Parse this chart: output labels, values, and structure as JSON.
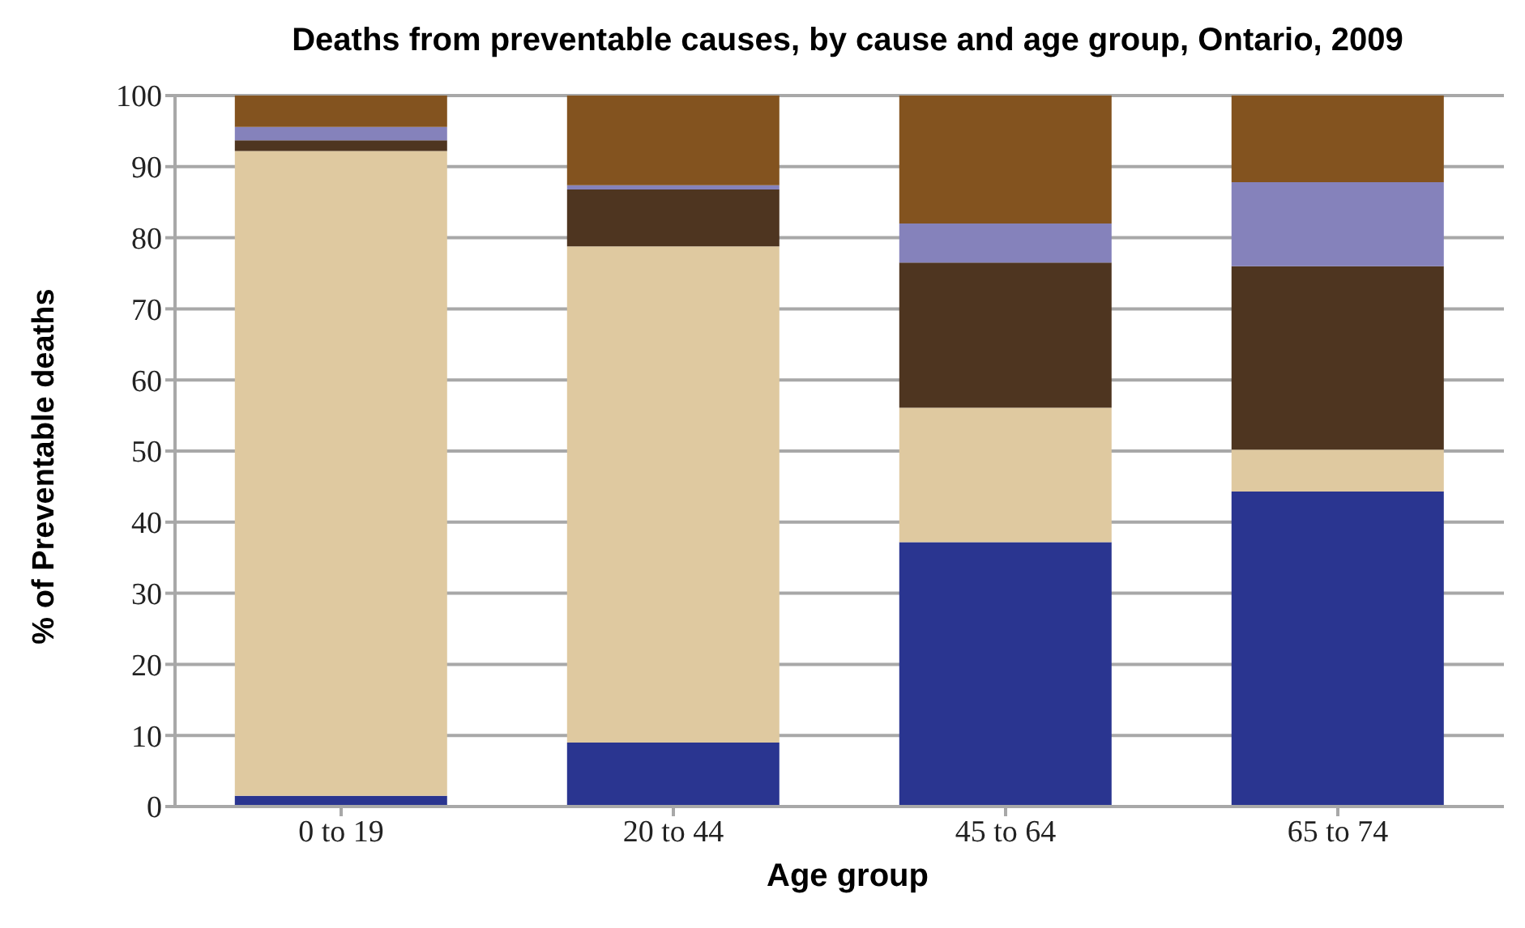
{
  "chart_data": {
    "type": "bar",
    "title": "Deaths from preventable causes, by cause and age group, Ontario, 2009",
    "xlabel": "Age group",
    "ylabel": "% of Preventable deaths",
    "categories": [
      "0 to 19",
      "20 to 44",
      "45 to 64",
      "65 to 74"
    ],
    "stacked": true,
    "series": [
      {
        "color": "#2a3590",
        "values": [
          1.5,
          9,
          37.2,
          44.3
        ]
      },
      {
        "color": "#dfc9a0",
        "values": [
          90.7,
          69.8,
          18.9,
          5.9
        ]
      },
      {
        "color": "#4e3520",
        "values": [
          1.5,
          8,
          20.4,
          25.8
        ]
      },
      {
        "color": "#8582bb",
        "values": [
          1.9,
          0.6,
          5.5,
          11.8
        ]
      },
      {
        "color": "#83531f",
        "values": [
          4.4,
          12.6,
          18,
          12.2
        ]
      }
    ],
    "ylim": [
      0,
      100
    ],
    "yticks": [
      0,
      10,
      20,
      30,
      40,
      50,
      60,
      70,
      80,
      90,
      100
    ],
    "grid": "y",
    "legend": false
  }
}
